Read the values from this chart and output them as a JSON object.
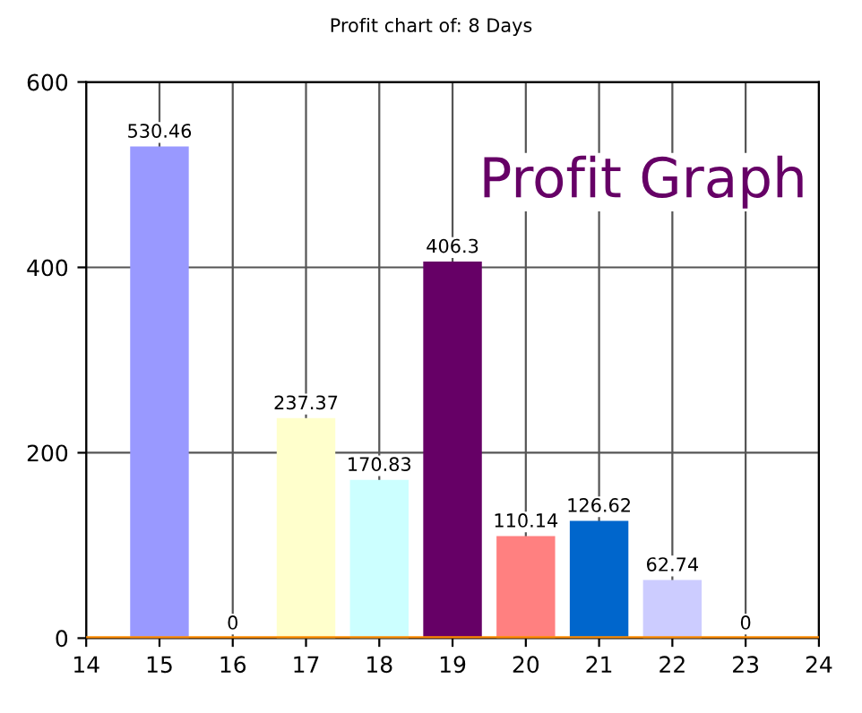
{
  "chart_data": {
    "type": "bar",
    "title": "Profit chart of: 8 Days",
    "x": [
      15,
      16,
      17,
      18,
      19,
      20,
      21,
      22,
      23
    ],
    "values": [
      530.46,
      0,
      237.37,
      170.83,
      406.3,
      110.14,
      126.62,
      62.74,
      0
    ],
    "colors": [
      "#9999ff",
      "#993366",
      "#ffffcc",
      "#ccffff",
      "#660066",
      "#ff8080",
      "#0066cc",
      "#ccccff",
      "#000080"
    ],
    "xlim": [
      14,
      24
    ],
    "xticks": [
      14,
      15,
      16,
      17,
      18,
      19,
      20,
      21,
      22,
      23,
      24
    ],
    "ylim": [
      0,
      600
    ],
    "yticks": [
      0,
      200,
      400,
      600
    ],
    "grid": true,
    "data_labels": true,
    "ref_lines": [
      {
        "axis": "y",
        "value": 0,
        "color": "#ff8c00"
      }
    ],
    "annotations": [
      "Profit Graph"
    ]
  }
}
